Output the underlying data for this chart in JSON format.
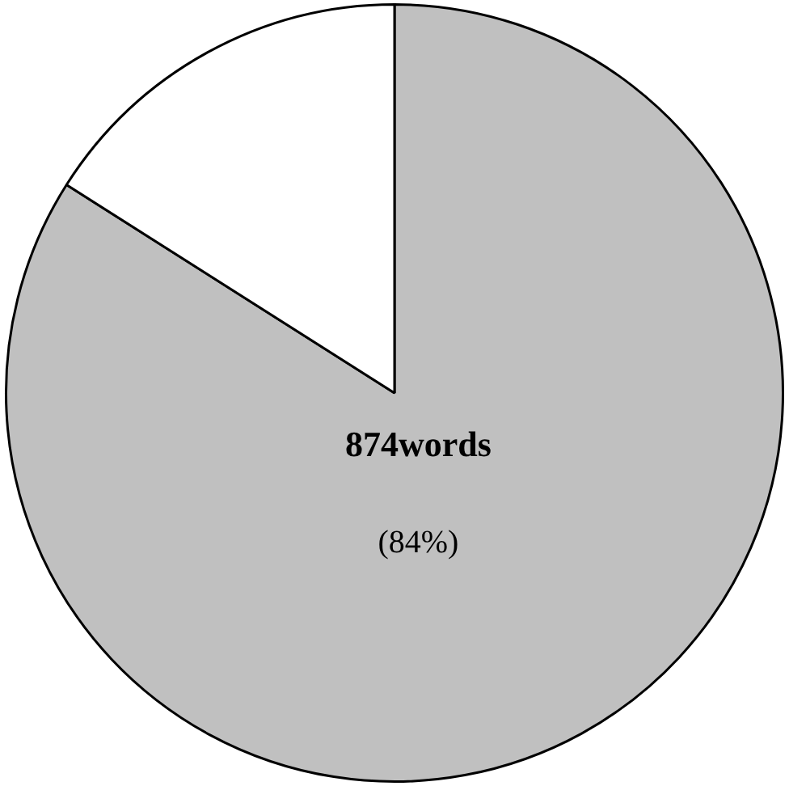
{
  "chart_data": {
    "type": "pie",
    "categories": [
      null,
      null
    ],
    "values": [
      84,
      16
    ],
    "colors": [
      "#c0c0c0",
      "#ffffff"
    ],
    "value_labels": [
      "874words\n(84%)",
      null
    ],
    "legend": false
  }
}
